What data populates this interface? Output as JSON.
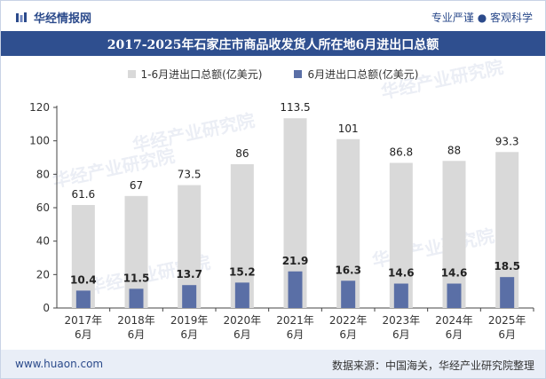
{
  "brand": {
    "name": "华经情报网"
  },
  "tagline": "专业严谨 ● 客观科学",
  "colors": {
    "series1": "#d9d9d9",
    "series2": "#5a6fa6",
    "title_bg": "#2f4f8f",
    "brand": "#2b4a8b"
  },
  "chart_data": {
    "type": "bar",
    "title": "2017-2025年石家庄市商品收发货人所在地6月进出口总额",
    "categories": [
      [
        "2017年",
        "6月"
      ],
      [
        "2018年",
        "6月"
      ],
      [
        "2019年",
        "6月"
      ],
      [
        "2020年",
        "6月"
      ],
      [
        "2021年",
        "6月"
      ],
      [
        "2022年",
        "6月"
      ],
      [
        "2023年",
        "6月"
      ],
      [
        "2024年",
        "6月"
      ],
      [
        "2025年",
        "6月"
      ]
    ],
    "series": [
      {
        "name": "1-6月进出口总额(亿美元)",
        "values": [
          61.6,
          67,
          73.5,
          86,
          113.5,
          101,
          86.8,
          88,
          93.3
        ],
        "labels": [
          "61.6",
          "67",
          "73.5",
          "86",
          "113.5",
          "101",
          "86.8",
          "88",
          "93.3"
        ]
      },
      {
        "name": "6月进出口总额(亿美元)",
        "values": [
          10.4,
          11.5,
          13.7,
          15.2,
          21.9,
          16.3,
          14.6,
          14.6,
          18.5
        ],
        "labels": [
          "10.4",
          "11.5",
          "13.7",
          "15.2",
          "21.9",
          "16.3",
          "14.6",
          "14.6",
          "18.5"
        ]
      }
    ],
    "ylim": [
      0,
      120
    ],
    "yticks": [
      "0",
      "20",
      "40",
      "60",
      "80",
      "100",
      "120"
    ],
    "grid": false,
    "legend": "top-center",
    "xlabel": "",
    "ylabel": ""
  },
  "watermark": "华经产业研究院",
  "footer": {
    "website": "www.huaon.com",
    "source": "数据来源：中国海关，华经产业研究院整理"
  }
}
